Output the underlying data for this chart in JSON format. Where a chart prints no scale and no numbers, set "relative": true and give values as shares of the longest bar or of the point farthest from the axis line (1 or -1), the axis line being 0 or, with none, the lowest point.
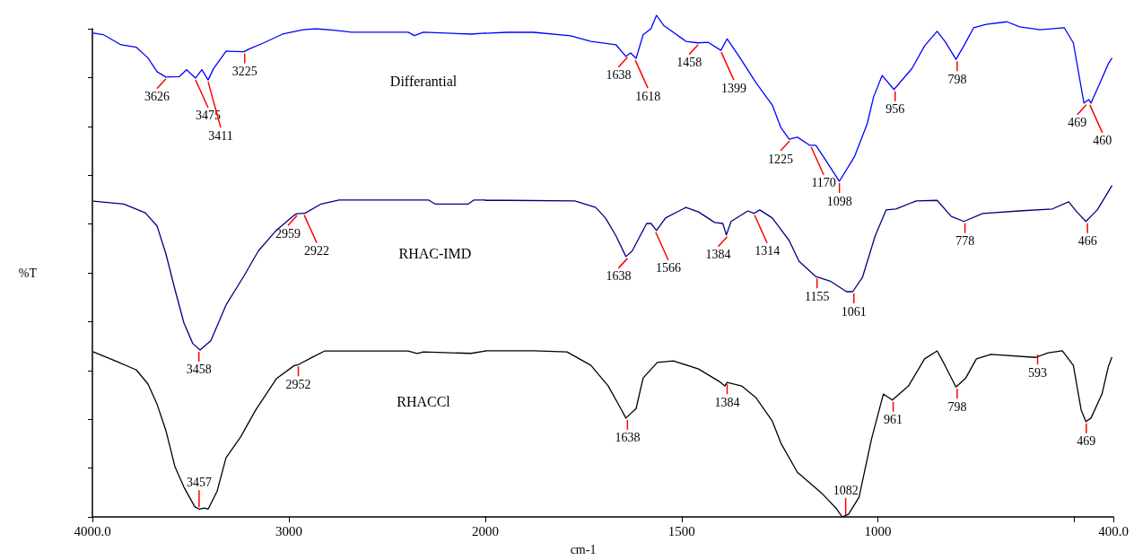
{
  "chart_data": [
    {
      "type": "line",
      "relative": true,
      "ylabel": "%T",
      "xlim": [
        4000,
        2000
      ],
      "xticks": [
        {
          "value": 4000,
          "label": "4000.0"
        },
        3000,
        2000
      ],
      "series": [
        {
          "name": "Differantial",
          "color": "#0000ff",
          "x": [
            3995,
            3945,
            3854,
            3776,
            3717,
            3671,
            3626,
            3557,
            3521,
            3475,
            3443,
            3411,
            3384,
            3320,
            3229,
            3205,
            3123,
            3032,
            2927,
            2863,
            2772,
            2681,
            2393,
            2361,
            2315,
            2073,
            2000
          ],
          "values": [
            0.991,
            0.988,
            0.967,
            0.962,
            0.94,
            0.912,
            0.901,
            0.902,
            0.916,
            0.899,
            0.916,
            0.895,
            0.918,
            0.954,
            0.953,
            0.958,
            0.972,
            0.989,
            0.998,
            1.0,
            0.997,
            0.993,
            0.993,
            0.986,
            0.993,
            0.989,
            0.991
          ]
        },
        {
          "name": "RHAC-IMD",
          "color": "#000080",
          "x": [
            3995,
            3840,
            3731,
            3671,
            3626,
            3580,
            3534,
            3489,
            3452,
            3397,
            3320,
            3228,
            3155,
            3064,
            2973,
            2959,
            2922,
            2918,
            2836,
            2744,
            2288,
            2256,
            2087,
            2059,
            2000
          ],
          "values": [
            0.647,
            0.641,
            0.623,
            0.596,
            0.539,
            0.466,
            0.397,
            0.355,
            0.342,
            0.361,
            0.434,
            0.494,
            0.545,
            0.587,
            0.618,
            0.621,
            0.622,
            0.622,
            0.641,
            0.649,
            0.649,
            0.641,
            0.641,
            0.649,
            0.649
          ]
        },
        {
          "name": "RHACCl",
          "color": "#000000",
          "x": [
            3995,
            3886,
            3776,
            3717,
            3671,
            3626,
            3580,
            3534,
            3479,
            3457,
            3429,
            3411,
            3365,
            3320,
            3247,
            3169,
            3064,
            2973,
            2952,
            2881,
            2817,
            2393,
            2347,
            2315,
            2073,
            2000
          ],
          "values": [
            0.338,
            0.32,
            0.301,
            0.272,
            0.231,
            0.177,
            0.103,
            0.061,
            0.021,
            0.016,
            0.018,
            0.016,
            0.053,
            0.121,
            0.163,
            0.219,
            0.283,
            0.31,
            0.312,
            0.327,
            0.34,
            0.34,
            0.335,
            0.338,
            0.335,
            0.34
          ]
        }
      ],
      "annotations": [
        {
          "text": "3626",
          "x": 3626,
          "y": 0.901
        },
        {
          "text": "3475",
          "x": 3475,
          "y": 0.899
        },
        {
          "text": "3411",
          "x": 3411,
          "y": 0.895
        },
        {
          "text": "3225",
          "x": 3225,
          "y": 0.953
        },
        {
          "text": "3458",
          "x": 3458,
          "y": 0.342
        },
        {
          "text": "2959",
          "x": 2959,
          "y": 0.621
        },
        {
          "text": "2922",
          "x": 2922,
          "y": 0.622
        },
        {
          "text": "3457",
          "x": 3457,
          "y": 0.016
        },
        {
          "text": "2952",
          "x": 2952,
          "y": 0.312
        }
      ]
    },
    {
      "type": "line",
      "relative": true,
      "xlabel": "cm-1",
      "xlim": [
        2000,
        400
      ],
      "tick_labels": "x",
      "xticks": [
        1500,
        1000,
        {
          "value": 500,
          "label": null
        },
        {
          "value": 400,
          "label": "400.0"
        }
      ],
      "series": [
        {
          "color": "#0000ff",
          "x": [
            2000,
            1945,
            1877,
            1783,
            1731,
            1667,
            1642,
            1630,
            1616,
            1598,
            1578,
            1564,
            1546,
            1489,
            1459,
            1432,
            1400,
            1384,
            1352,
            1311,
            1269,
            1247,
            1226,
            1205,
            1174,
            1158,
            1132,
            1098,
            1059,
            1027,
            1011,
            989,
            959,
            913,
            881,
            849,
            829,
            801,
            781,
            756,
            724,
            671,
            639,
            587,
            525,
            502,
            475,
            463,
            457,
            436,
            413,
            404
          ],
          "values": [
            0.964,
            0.966,
            0.966,
            0.959,
            0.948,
            0.941,
            0.918,
            0.925,
            0.914,
            0.961,
            0.973,
            1.0,
            0.98,
            0.948,
            0.945,
            0.946,
            0.93,
            0.953,
            0.916,
            0.866,
            0.821,
            0.776,
            0.753,
            0.757,
            0.741,
            0.741,
            0.71,
            0.669,
            0.719,
            0.784,
            0.837,
            0.88,
            0.852,
            0.894,
            0.939,
            0.968,
            0.948,
            0.912,
            0.939,
            0.975,
            0.982,
            0.987,
            0.977,
            0.971,
            0.975,
            0.945,
            0.825,
            0.832,
            0.825,
            0.862,
            0.903,
            0.914
          ]
        },
        {
          "color": "#000080",
          "x": [
            2000,
            1945,
            1772,
            1719,
            1694,
            1667,
            1642,
            1626,
            1589,
            1578,
            1564,
            1541,
            1489,
            1457,
            1416,
            1395,
            1386,
            1374,
            1331,
            1315,
            1301,
            1269,
            1226,
            1201,
            1158,
            1121,
            1080,
            1064,
            1039,
            1007,
            979,
            954,
            902,
            849,
            813,
            781,
            733,
            639,
            555,
            514,
            493,
            470,
            441,
            404
          ],
          "values": [
            0.631,
            0.631,
            0.63,
            0.617,
            0.596,
            0.56,
            0.519,
            0.53,
            0.585,
            0.585,
            0.571,
            0.596,
            0.617,
            0.608,
            0.587,
            0.585,
            0.562,
            0.589,
            0.61,
            0.605,
            0.612,
            0.596,
            0.551,
            0.51,
            0.479,
            0.47,
            0.449,
            0.449,
            0.478,
            0.56,
            0.612,
            0.614,
            0.63,
            0.631,
            0.599,
            0.589,
            0.605,
            0.61,
            0.614,
            0.628,
            0.608,
            0.589,
            0.612,
            0.66
          ]
        },
        {
          "color": "#000000",
          "x": [
            2000,
            1945,
            1877,
            1792,
            1731,
            1687,
            1655,
            1642,
            1616,
            1598,
            1562,
            1521,
            1457,
            1404,
            1390,
            1384,
            1347,
            1311,
            1269,
            1247,
            1205,
            1144,
            1105,
            1091,
            1075,
            1048,
            1016,
            986,
            963,
            922,
            881,
            849,
            829,
            801,
            776,
            749,
            712,
            598,
            566,
            530,
            502,
            482,
            470,
            457,
            429,
            413,
            404
          ],
          "values": [
            0.331,
            0.331,
            0.331,
            0.329,
            0.302,
            0.261,
            0.216,
            0.197,
            0.216,
            0.277,
            0.308,
            0.311,
            0.295,
            0.27,
            0.261,
            0.268,
            0.261,
            0.238,
            0.191,
            0.147,
            0.089,
            0.048,
            0.016,
            0.0,
            0.005,
            0.039,
            0.156,
            0.245,
            0.233,
            0.261,
            0.315,
            0.331,
            0.302,
            0.259,
            0.277,
            0.315,
            0.324,
            0.318,
            0.327,
            0.331,
            0.302,
            0.213,
            0.19,
            0.197,
            0.245,
            0.299,
            0.318
          ]
        }
      ],
      "annotations": [
        {
          "text": "1638",
          "x": 1638,
          "y": 0.92
        },
        {
          "text": "1618",
          "x": 1618,
          "y": 0.914
        },
        {
          "text": "1458",
          "x": 1458,
          "y": 0.945
        },
        {
          "text": "1399",
          "x": 1399,
          "y": 0.93
        },
        {
          "text": "1225",
          "x": 1225,
          "y": 0.753
        },
        {
          "text": "1170",
          "x": 1170,
          "y": 0.741
        },
        {
          "text": "1098",
          "x": 1098,
          "y": 0.669
        },
        {
          "text": "956",
          "x": 956,
          "y": 0.852
        },
        {
          "text": "798",
          "x": 798,
          "y": 0.912
        },
        {
          "text": "469",
          "x": 469,
          "y": 0.825
        },
        {
          "text": "460",
          "x": 460,
          "y": 0.825
        },
        {
          "text": "1638",
          "x": 1638,
          "y": 0.519
        },
        {
          "text": "1566",
          "x": 1566,
          "y": 0.571
        },
        {
          "text": "1384",
          "x": 1384,
          "y": 0.562
        },
        {
          "text": "1314",
          "x": 1314,
          "y": 0.605
        },
        {
          "text": "1155",
          "x": 1155,
          "y": 0.479
        },
        {
          "text": "1061",
          "x": 1061,
          "y": 0.449
        },
        {
          "text": "778",
          "x": 778,
          "y": 0.589
        },
        {
          "text": "466",
          "x": 466,
          "y": 0.589
        },
        {
          "text": "1638",
          "x": 1638,
          "y": 0.197
        },
        {
          "text": "1384",
          "x": 1384,
          "y": 0.268
        },
        {
          "text": "1082",
          "x": 1082,
          "y": 0.0
        },
        {
          "text": "961",
          "x": 961,
          "y": 0.233
        },
        {
          "text": "798",
          "x": 798,
          "y": 0.259
        },
        {
          "text": "593",
          "x": 593,
          "y": 0.327
        },
        {
          "text": "469",
          "x": 469,
          "y": 0.19
        }
      ]
    }
  ]
}
